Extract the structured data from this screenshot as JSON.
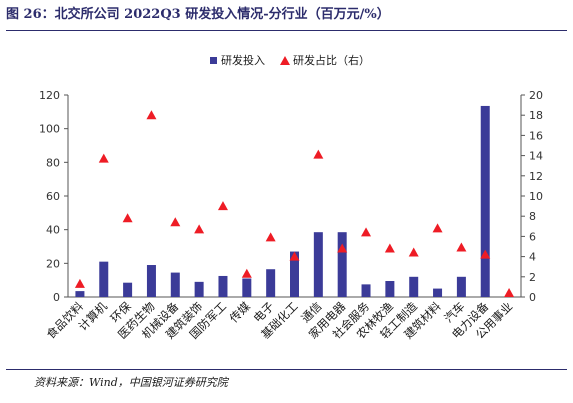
{
  "title": "图 26：北交所公司 2022Q3 研发投入情况-分行业（百万元/%）",
  "source": "资料来源：Wind，中国银河证券研究院",
  "chart_data": {
    "type": "bar",
    "categories": [
      "食品饮料",
      "计算机",
      "环保",
      "医药生物",
      "机械设备",
      "建筑装饰",
      "国防军工",
      "传媒",
      "电子",
      "基础化工",
      "通信",
      "家用电器",
      "社会服务",
      "农林牧渔",
      "轻工制造",
      "建筑材料",
      "汽车",
      "电力设备",
      "公用事业"
    ],
    "series": [
      {
        "name": "研发投入",
        "type": "bar",
        "axis": "left",
        "color": "#3b3b98",
        "values": [
          3.5,
          21,
          8.5,
          19,
          14.5,
          9,
          12.5,
          11,
          16.5,
          27,
          38.5,
          38.5,
          7.5,
          9.5,
          12,
          5,
          12,
          113.5,
          0
        ]
      },
      {
        "name": "研发占比（右）",
        "type": "scatter",
        "axis": "right",
        "marker": "triangle",
        "color": "#ee1c25",
        "values": [
          1.3,
          13.7,
          7.8,
          18,
          7.4,
          6.7,
          9,
          2.3,
          5.9,
          4,
          14.1,
          4.8,
          6.4,
          4.8,
          4.4,
          6.8,
          4.9,
          4.2,
          0.4
        ]
      }
    ],
    "y_left": {
      "min": 0,
      "max": 120,
      "ticks": [
        0,
        20,
        40,
        60,
        80,
        100,
        120
      ]
    },
    "y_right": {
      "min": 0,
      "max": 20,
      "ticks": [
        0,
        2,
        4,
        6,
        8,
        10,
        12,
        14,
        16,
        18,
        20
      ]
    },
    "legend_position": "top-center",
    "grid": false
  }
}
